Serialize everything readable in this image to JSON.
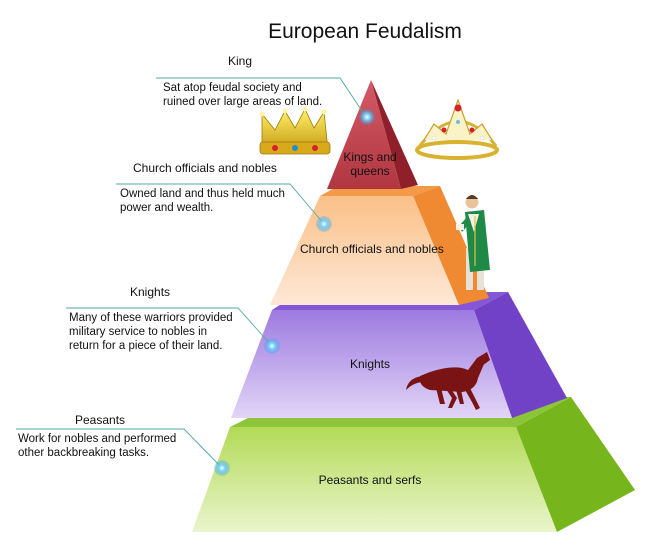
{
  "title": "European Feudalism",
  "levels": [
    {
      "heading": "King",
      "description": "Sat atop feudal society and ruined over large areas of land.",
      "tier_label": "Kings and queens",
      "color": "#b8333b"
    },
    {
      "heading": "Church officials and nobles",
      "description": "Owned land and thus held much power and wealth.",
      "tier_label": "Church officials and nobles",
      "color": "#f5963f"
    },
    {
      "heading": "Knights",
      "description": "Many of these warriors provided military service to nobles in return for a piece of their land.",
      "tier_label": "Knights",
      "color": "#8a5fd8"
    },
    {
      "heading": "Peasants",
      "description": "Work for nobles and performed other backbreaking tasks.",
      "tier_label": "Peasants and serfs",
      "color": "#9acd32"
    }
  ],
  "icons": [
    "gold-crown-icon",
    "tiara-icon",
    "priest-icon",
    "horse-icon"
  ]
}
